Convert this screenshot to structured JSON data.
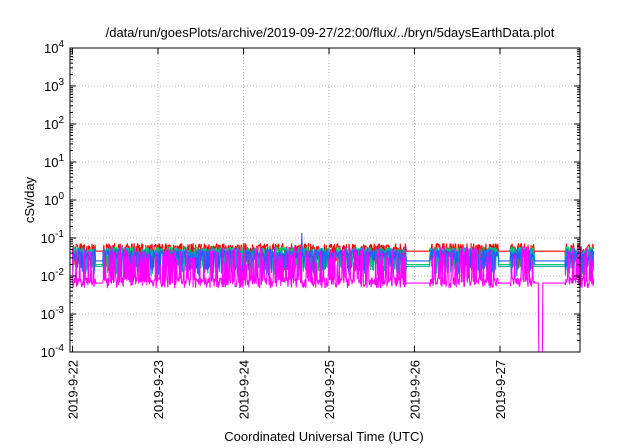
{
  "chart_data": {
    "type": "line",
    "title": "/data/run/goesPlots/archive/2019-09-27/22:00/flux/../bryn/5daysEarthData.plot",
    "xlabel": "Coordinated Universal Time (UTC)",
    "ylabel": "cSv/day",
    "yscale": "log",
    "ylim": [
      0.0001,
      10000
    ],
    "xlim": [
      0,
      6.1
    ],
    "x_ticks": [
      {
        "x": 0,
        "label": "2019-9-22"
      },
      {
        "x": 1,
        "label": "2019-9-23"
      },
      {
        "x": 2,
        "label": "2019-9-24"
      },
      {
        "x": 3,
        "label": "2019-9-25"
      },
      {
        "x": 4,
        "label": "2019-9-26"
      },
      {
        "x": 5,
        "label": "2019-9-27"
      }
    ],
    "y_ticks": [
      {
        "exp": -4,
        "value": 0.0001,
        "label": "10",
        "sup": "-4"
      },
      {
        "exp": -3,
        "value": 0.001,
        "label": "10",
        "sup": "-3"
      },
      {
        "exp": -2,
        "value": 0.01,
        "label": "10",
        "sup": "-2"
      },
      {
        "exp": -1,
        "value": 0.1,
        "label": "10",
        "sup": "-1"
      },
      {
        "exp": 0,
        "value": 1,
        "label": "10",
        "sup": "0"
      },
      {
        "exp": 1,
        "value": 10,
        "label": "10",
        "sup": "1"
      },
      {
        "exp": 2,
        "value": 100,
        "label": "10",
        "sup": "2"
      },
      {
        "exp": 3,
        "value": 1000,
        "label": "10",
        "sup": "3"
      },
      {
        "exp": 4,
        "value": 10000,
        "label": "10",
        "sup": "4"
      }
    ],
    "grid": true,
    "gaps": [
      [
        0.27,
        0.36
      ],
      [
        3.9,
        4.18
      ],
      [
        4.98,
        5.12
      ],
      [
        5.4,
        5.76
      ]
    ],
    "series": [
      {
        "color": "#ff0000",
        "base": 0.055,
        "low": 0.045
      },
      {
        "color": "#00cc66",
        "base": 0.045,
        "low": 0.02
      },
      {
        "color": "#00aaaa",
        "base": 0.042,
        "low": 0.018
      },
      {
        "color": "#1f5fff",
        "base": 0.038,
        "low": 0.025
      },
      {
        "color": "#ff00ff",
        "base": 0.007,
        "low": 0.0065
      }
    ],
    "dropout": {
      "x": [
        5.45,
        5.5
      ],
      "to": 0.0001
    }
  }
}
